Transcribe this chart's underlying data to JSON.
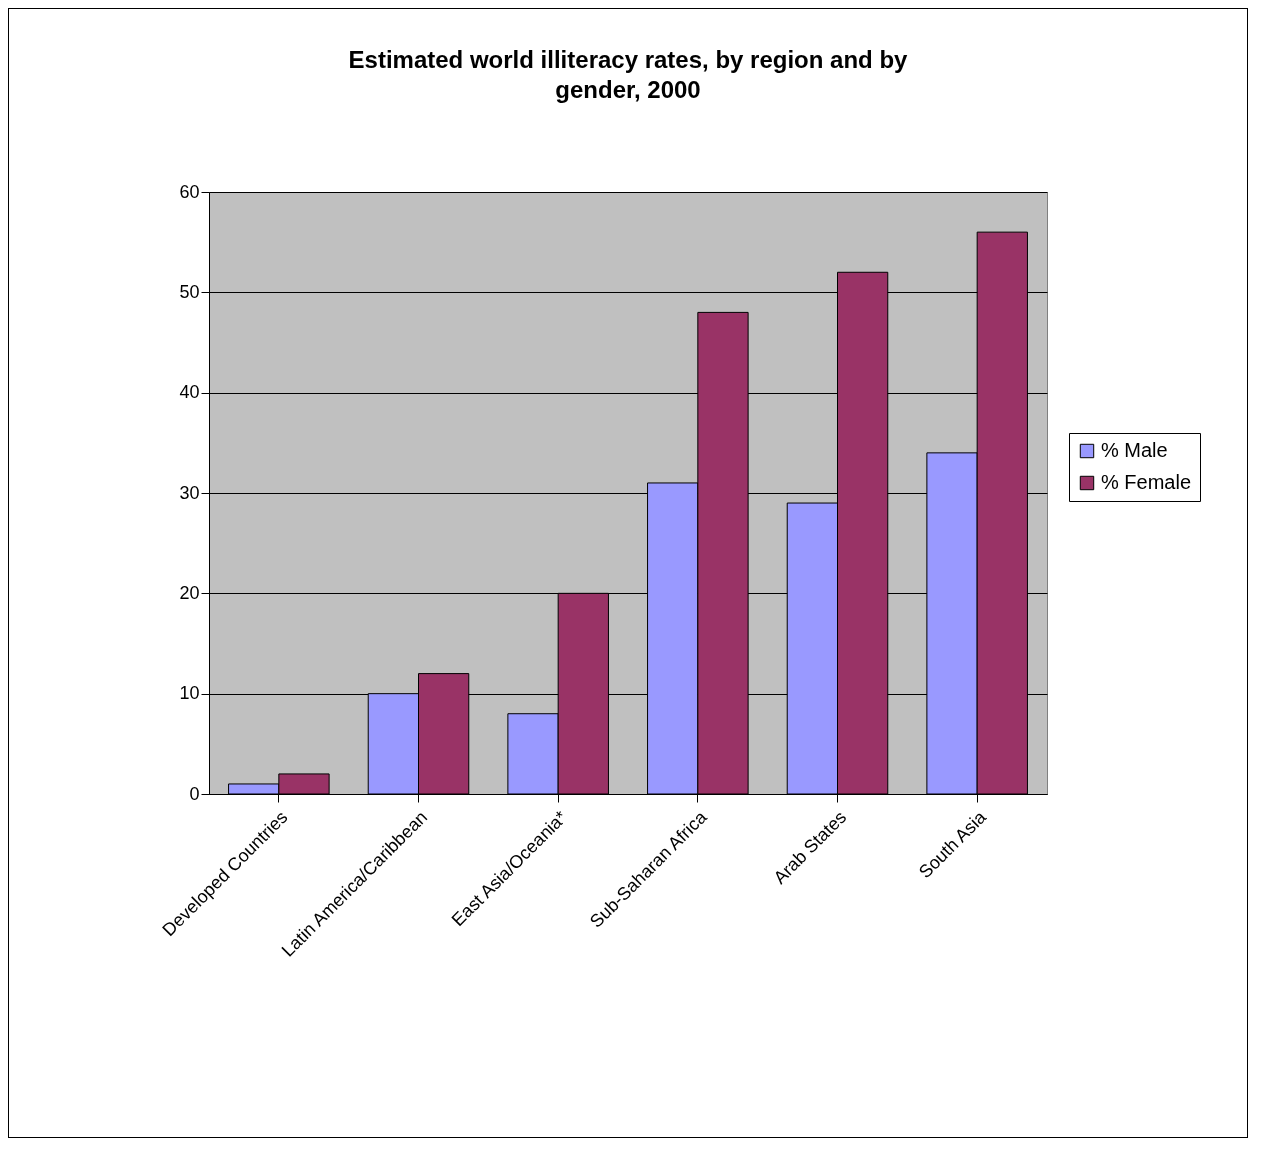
{
  "chart_data": {
    "type": "bar",
    "title": "Estimated world illiteracy rates, by region and by gender, 2000",
    "categories": [
      "Developed Countries",
      "Latin America/Caribbean",
      "East Asia/Oceania*",
      "Sub-Saharan Africa",
      "Arab States",
      "South Asia"
    ],
    "series": [
      {
        "name": "% Male",
        "color": "#9999ff",
        "values": [
          1,
          10,
          8,
          31,
          29,
          34
        ]
      },
      {
        "name": "% Female",
        "color": "#993366",
        "values": [
          2,
          12,
          20,
          48,
          52,
          56
        ]
      }
    ],
    "ylim": [
      0,
      60
    ],
    "yticks": [
      0,
      10,
      20,
      30,
      40,
      50,
      60
    ],
    "grid": "y",
    "legend": "right"
  }
}
